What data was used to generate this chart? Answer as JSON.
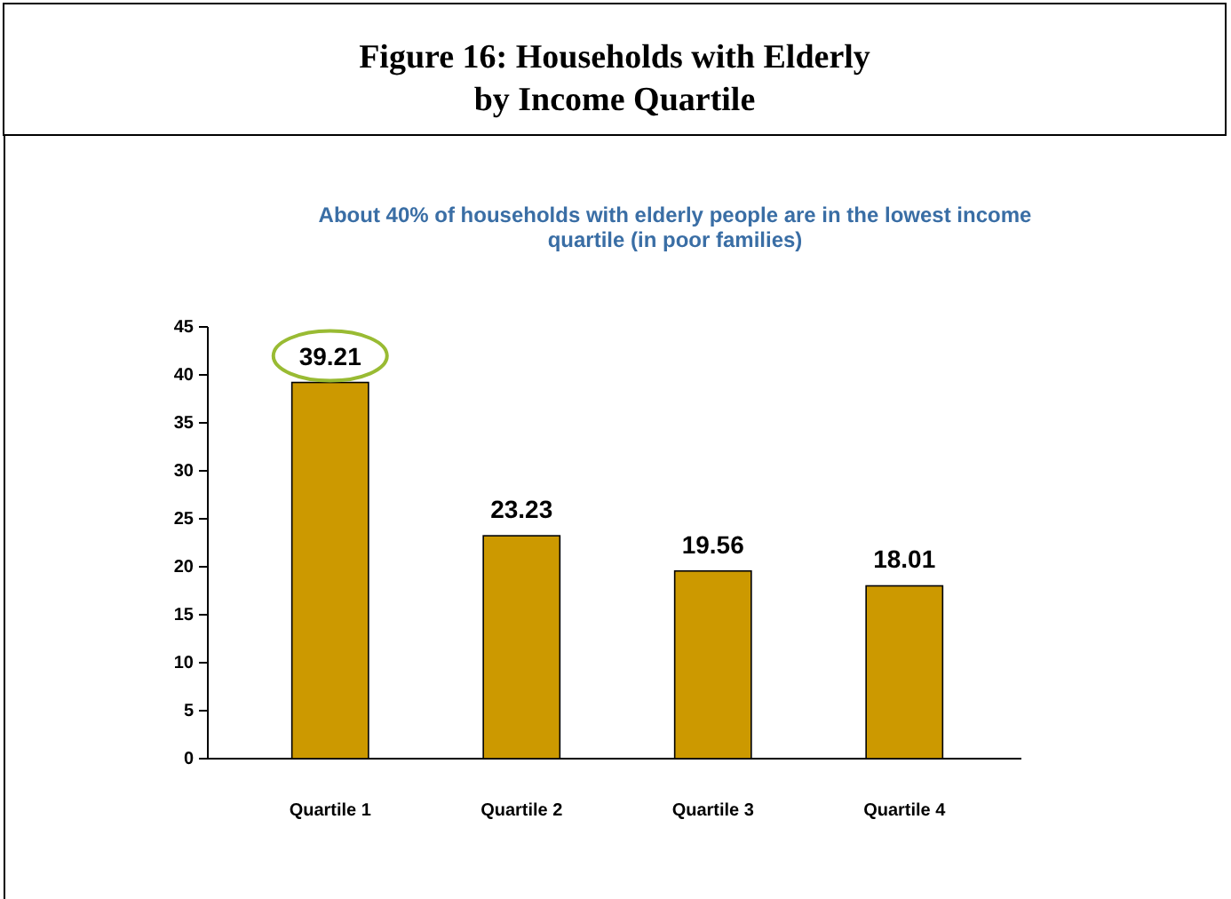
{
  "chart_data": {
    "type": "bar",
    "title": "Figure 16: Households with Elderly\nby Income Quartile",
    "subtitle": "About 40% of households with elderly people are in the lowest income\nquartile (in poor families)",
    "categories": [
      "Quartile 1",
      "Quartile 2",
      "Quartile 3",
      "Quartile 4"
    ],
    "values": [
      39.21,
      23.23,
      19.56,
      18.01
    ],
    "color": "#cc9900",
    "ylim": [
      0,
      45
    ],
    "yticks": [
      0,
      5,
      10,
      15,
      20,
      25,
      30,
      35,
      40,
      45
    ],
    "grid": false,
    "data_labels": true
  }
}
